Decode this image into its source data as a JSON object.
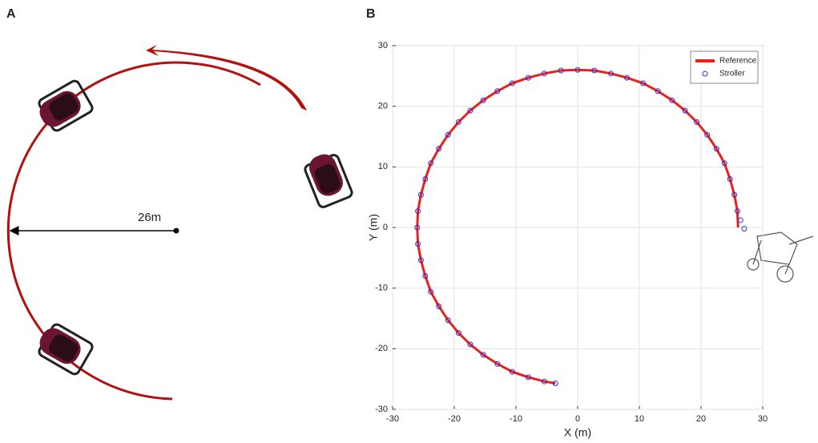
{
  "panel_a": {
    "label": "A",
    "radius_label": "26m"
  },
  "chart_data": {
    "type": "line",
    "panel_label": "B",
    "xlabel": "X (m)",
    "ylabel": "Y (m)",
    "xlim": [
      -30,
      30
    ],
    "ylim": [
      -30,
      30
    ],
    "xticks": [
      -30,
      -20,
      -10,
      0,
      10,
      20,
      30
    ],
    "yticks": [
      -30,
      -20,
      -10,
      0,
      10,
      20,
      30
    ],
    "grid": true,
    "legend": "northeast",
    "series": [
      {
        "name": "Reference",
        "color": "#e8201e",
        "style": "line",
        "x": [
          26,
          25.9,
          25.4,
          24.7,
          23.8,
          22.5,
          21.0,
          19.3,
          17.4,
          15.3,
          13.0,
          10.6,
          8.0,
          5.4,
          2.7,
          0,
          -2.7,
          -5.4,
          -8.0,
          -10.6,
          -13.0,
          -15.3,
          -17.4,
          -19.3,
          -21.0,
          -22.5,
          -23.8,
          -24.7,
          -25.4,
          -25.9,
          -26,
          -25.9,
          -25.4,
          -24.7,
          -23.8,
          -22.5,
          -21.0,
          -19.3,
          -17.4,
          -15.3,
          -13.0,
          -10.6,
          -8.0,
          -5.4,
          -3.6
        ],
        "y": [
          0,
          2.7,
          5.4,
          8.0,
          10.6,
          13.0,
          15.3,
          17.4,
          19.3,
          21.0,
          22.5,
          23.8,
          24.7,
          25.4,
          25.9,
          26,
          25.9,
          25.4,
          24.7,
          23.8,
          22.5,
          21.0,
          19.3,
          17.4,
          15.3,
          13.0,
          10.6,
          8.0,
          5.4,
          2.7,
          0,
          -2.7,
          -5.4,
          -8.0,
          -10.6,
          -13.0,
          -15.3,
          -17.4,
          -19.3,
          -21.0,
          -22.5,
          -23.8,
          -24.7,
          -25.4,
          -25.7
        ]
      },
      {
        "name": "Stroller",
        "color": "#2e2ed6",
        "style": "marker",
        "x": [
          27.0,
          26.4,
          25.9,
          25.4,
          24.7,
          23.8,
          22.5,
          21.0,
          19.3,
          17.4,
          15.3,
          13.0,
          10.6,
          8.0,
          5.4,
          2.7,
          0,
          -2.7,
          -5.4,
          -8.0,
          -10.6,
          -13.0,
          -15.3,
          -17.4,
          -19.3,
          -21.0,
          -22.5,
          -23.8,
          -24.7,
          -25.4,
          -25.9,
          -26,
          -25.9,
          -25.4,
          -24.7,
          -23.8,
          -22.5,
          -21.0,
          -19.3,
          -17.4,
          -15.3,
          -13.0,
          -10.6,
          -8.0,
          -5.4,
          -3.6
        ],
        "y": [
          -0.2,
          1.2,
          2.7,
          5.4,
          8.0,
          10.6,
          13.0,
          15.3,
          17.4,
          19.3,
          21.0,
          22.5,
          23.8,
          24.7,
          25.4,
          25.9,
          26,
          25.9,
          25.4,
          24.7,
          23.8,
          22.5,
          21.0,
          19.3,
          17.4,
          15.3,
          13.0,
          10.6,
          8.0,
          5.4,
          2.7,
          0,
          -2.7,
          -5.4,
          -8.0,
          -10.6,
          -13.0,
          -15.3,
          -17.4,
          -19.3,
          -21.0,
          -22.5,
          -23.8,
          -24.7,
          -25.4,
          -25.7
        ]
      }
    ]
  }
}
